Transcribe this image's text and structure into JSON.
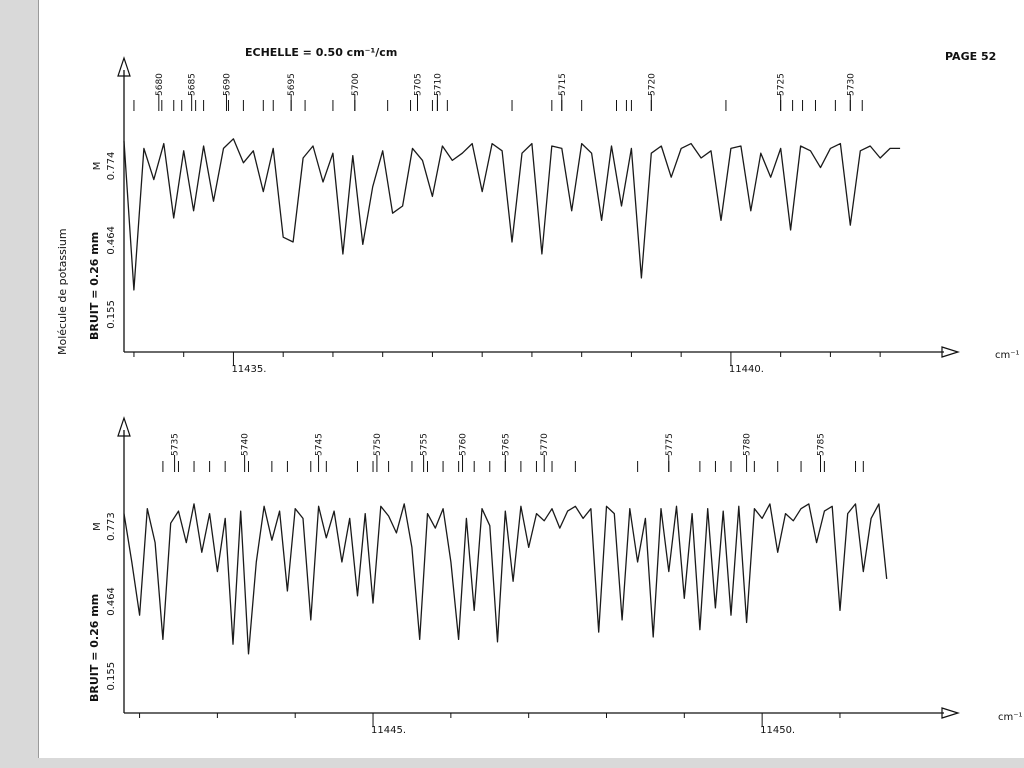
{
  "page": {
    "scale_label": "ECHELLE = 0.50 cm⁻¹/cm",
    "page_label": "PAGE 52",
    "molecule_label": "Molécule de potassium"
  },
  "chart_data": [
    {
      "type": "line",
      "xlabel": "cm⁻¹",
      "xlim": [
        11433.9,
        11441.8
      ],
      "x_ticks": [
        11434.0,
        11434.5,
        11435.0,
        11435.5,
        11436.0,
        11436.5,
        11437.0,
        11437.5,
        11438.0,
        11438.5,
        11439.0,
        11439.5,
        11440.0,
        11440.5,
        11441.0,
        11441.5
      ],
      "x_tick_labels": [
        {
          "x": 11435.0,
          "label": "11435."
        },
        {
          "x": 11440.0,
          "label": "11440."
        }
      ],
      "ylim": [
        0.0,
        1.0
      ],
      "y_ticks": [
        {
          "y": 0.155,
          "label": "0.155"
        },
        {
          "y": 0.464,
          "label": "0.464"
        },
        {
          "y": 0.774,
          "label": "0.774"
        }
      ],
      "y_note": "BRUIT = 0.26 mm",
      "y_marker": "M",
      "line_numbers": [
        {
          "x": 11434.25,
          "label": "5680"
        },
        {
          "x": 11434.58,
          "label": "5685"
        },
        {
          "x": 11434.93,
          "label": "5690"
        },
        {
          "x": 11435.58,
          "label": "5695"
        },
        {
          "x": 11436.22,
          "label": "5700"
        },
        {
          "x": 11436.85,
          "label": "5705"
        },
        {
          "x": 11437.05,
          "label": "5710"
        },
        {
          "x": 11438.3,
          "label": "5715"
        },
        {
          "x": 11439.2,
          "label": "5720"
        },
        {
          "x": 11440.5,
          "label": "5725"
        },
        {
          "x": 11441.2,
          "label": "5730"
        }
      ],
      "line_marks": [
        11434.0,
        11434.28,
        11434.4,
        11434.48,
        11434.62,
        11434.7,
        11434.95,
        11435.1,
        11435.3,
        11435.4,
        11435.58,
        11435.72,
        11436.0,
        11436.22,
        11436.55,
        11436.78,
        11436.85,
        11437.0,
        11437.05,
        11437.15,
        11437.8,
        11438.2,
        11438.3,
        11438.5,
        11438.85,
        11438.95,
        11439.0,
        11439.2,
        11439.95,
        11440.5,
        11440.62,
        11440.72,
        11440.85,
        11441.05,
        11441.2,
        11441.32
      ],
      "x": [
        11433.9,
        11434.0,
        11434.1,
        11434.2,
        11434.3,
        11434.4,
        11434.5,
        11434.6,
        11434.7,
        11434.8,
        11434.9,
        11435.0,
        11435.1,
        11435.2,
        11435.3,
        11435.4,
        11435.5,
        11435.6,
        11435.7,
        11435.8,
        11435.9,
        11436.0,
        11436.1,
        11436.2,
        11436.3,
        11436.4,
        11436.5,
        11436.6,
        11436.7,
        11436.8,
        11436.9,
        11437.0,
        11437.1,
        11437.2,
        11437.3,
        11437.4,
        11437.5,
        11437.6,
        11437.7,
        11437.8,
        11437.9,
        11438.0,
        11438.1,
        11438.2,
        11438.3,
        11438.4,
        11438.5,
        11438.6,
        11438.7,
        11438.8,
        11438.9,
        11439.0,
        11439.1,
        11439.2,
        11439.3,
        11439.4,
        11439.5,
        11439.6,
        11439.7,
        11439.8,
        11439.9,
        11440.0,
        11440.1,
        11440.2,
        11440.3,
        11440.4,
        11440.5,
        11440.6,
        11440.7,
        11440.8,
        11440.9,
        11441.0,
        11441.1,
        11441.2,
        11441.3,
        11441.4,
        11441.5,
        11441.6,
        11441.7
      ],
      "series": [
        {
          "values": [
            0.87,
            0.25,
            0.84,
            0.71,
            0.86,
            0.55,
            0.83,
            0.58,
            0.85,
            0.62,
            0.84,
            0.88,
            0.78,
            0.83,
            0.66,
            0.84,
            0.47,
            0.45,
            0.8,
            0.85,
            0.7,
            0.82,
            0.4,
            0.81,
            0.44,
            0.68,
            0.83,
            0.57,
            0.6,
            0.84,
            0.79,
            0.64,
            0.85,
            0.79,
            0.82,
            0.86,
            0.66,
            0.86,
            0.83,
            0.45,
            0.82,
            0.86,
            0.4,
            0.85,
            0.84,
            0.58,
            0.86,
            0.82,
            0.54,
            0.85,
            0.6,
            0.84,
            0.3,
            0.82,
            0.85,
            0.72,
            0.84,
            0.86,
            0.8,
            0.83,
            0.54,
            0.84,
            0.85,
            0.58,
            0.82,
            0.72,
            0.84,
            0.5,
            0.85,
            0.83,
            0.76,
            0.84,
            0.86,
            0.52,
            0.83,
            0.85,
            0.8,
            0.84,
            0.84
          ]
        }
      ]
    },
    {
      "type": "line",
      "xlabel": "cm⁻¹",
      "xlim": [
        11441.8,
        11451.9
      ],
      "x_ticks": [
        11442.0,
        11443.0,
        11444.0,
        11445.0,
        11446.0,
        11447.0,
        11448.0,
        11449.0,
        11450.0,
        11451.0
      ],
      "x_tick_labels": [
        {
          "x": 11445.0,
          "label": "11445."
        },
        {
          "x": 11450.0,
          "label": "11450."
        }
      ],
      "ylim": [
        0.0,
        1.0
      ],
      "y_ticks": [
        {
          "y": 0.155,
          "label": "0.155"
        },
        {
          "y": 0.464,
          "label": "0.464"
        },
        {
          "y": 0.773,
          "label": "0.773"
        }
      ],
      "y_note": "BRUIT = 0.26 mm",
      "y_marker": "M",
      "line_numbers": [
        {
          "x": 11442.45,
          "label": "5735"
        },
        {
          "x": 11443.35,
          "label": "5740"
        },
        {
          "x": 11444.3,
          "label": "5745"
        },
        {
          "x": 11445.05,
          "label": "5750"
        },
        {
          "x": 11445.65,
          "label": "5755"
        },
        {
          "x": 11446.15,
          "label": "5760"
        },
        {
          "x": 11446.7,
          "label": "5765"
        },
        {
          "x": 11447.2,
          "label": "5770"
        },
        {
          "x": 11448.8,
          "label": "5775"
        },
        {
          "x": 11449.8,
          "label": "5780"
        },
        {
          "x": 11450.75,
          "label": "5785"
        }
      ],
      "line_marks": [
        11442.3,
        11442.5,
        11442.7,
        11442.9,
        11443.1,
        11443.4,
        11443.7,
        11443.9,
        11444.2,
        11444.4,
        11444.8,
        11445.0,
        11445.2,
        11445.5,
        11445.7,
        11445.9,
        11446.1,
        11446.3,
        11446.5,
        11446.7,
        11446.9,
        11447.1,
        11447.3,
        11447.6,
        11448.4,
        11448.8,
        11449.2,
        11449.4,
        11449.6,
        11449.9,
        11450.2,
        11450.5,
        11450.8,
        11451.2,
        11451.3
      ],
      "x": [
        11441.8,
        11441.9,
        11442.0,
        11442.1,
        11442.2,
        11442.3,
        11442.4,
        11442.5,
        11442.6,
        11442.7,
        11442.8,
        11442.9,
        11443.0,
        11443.1,
        11443.2,
        11443.3,
        11443.4,
        11443.5,
        11443.6,
        11443.7,
        11443.8,
        11443.9,
        11444.0,
        11444.1,
        11444.2,
        11444.3,
        11444.4,
        11444.5,
        11444.6,
        11444.7,
        11444.8,
        11444.9,
        11445.0,
        11445.1,
        11445.2,
        11445.3,
        11445.4,
        11445.5,
        11445.6,
        11445.7,
        11445.8,
        11445.9,
        11446.0,
        11446.1,
        11446.2,
        11446.3,
        11446.4,
        11446.5,
        11446.6,
        11446.7,
        11446.8,
        11446.9,
        11447.0,
        11447.1,
        11447.2,
        11447.3,
        11447.4,
        11447.5,
        11447.6,
        11447.7,
        11447.8,
        11447.9,
        11448.0,
        11448.1,
        11448.2,
        11448.3,
        11448.4,
        11448.5,
        11448.6,
        11448.7,
        11448.8,
        11448.9,
        11449.0,
        11449.1,
        11449.2,
        11449.3,
        11449.4,
        11449.5,
        11449.6,
        11449.7,
        11449.8,
        11449.9,
        11450.0,
        11450.1,
        11450.2,
        11450.3,
        11450.4,
        11450.5,
        11450.6,
        11450.7,
        11450.8,
        11450.9,
        11451.0,
        11451.1,
        11451.2,
        11451.3,
        11451.4,
        11451.5,
        11451.6
      ],
      "series": [
        {
          "values": [
            0.82,
            0.62,
            0.4,
            0.84,
            0.7,
            0.3,
            0.78,
            0.83,
            0.7,
            0.86,
            0.66,
            0.82,
            0.58,
            0.8,
            0.28,
            0.83,
            0.24,
            0.62,
            0.85,
            0.71,
            0.83,
            0.5,
            0.84,
            0.8,
            0.38,
            0.85,
            0.72,
            0.83,
            0.62,
            0.8,
            0.48,
            0.82,
            0.45,
            0.85,
            0.81,
            0.74,
            0.86,
            0.68,
            0.3,
            0.82,
            0.76,
            0.84,
            0.62,
            0.3,
            0.8,
            0.42,
            0.84,
            0.77,
            0.29,
            0.83,
            0.54,
            0.85,
            0.68,
            0.82,
            0.79,
            0.84,
            0.76,
            0.83,
            0.85,
            0.8,
            0.84,
            0.33,
            0.85,
            0.82,
            0.38,
            0.84,
            0.62,
            0.8,
            0.31,
            0.84,
            0.58,
            0.85,
            0.47,
            0.82,
            0.34,
            0.84,
            0.43,
            0.83,
            0.4,
            0.85,
            0.37,
            0.84,
            0.8,
            0.86,
            0.66,
            0.82,
            0.79,
            0.84,
            0.86,
            0.7,
            0.83,
            0.85,
            0.42,
            0.82,
            0.86,
            0.58,
            0.8,
            0.86,
            0.55
          ]
        }
      ]
    }
  ]
}
